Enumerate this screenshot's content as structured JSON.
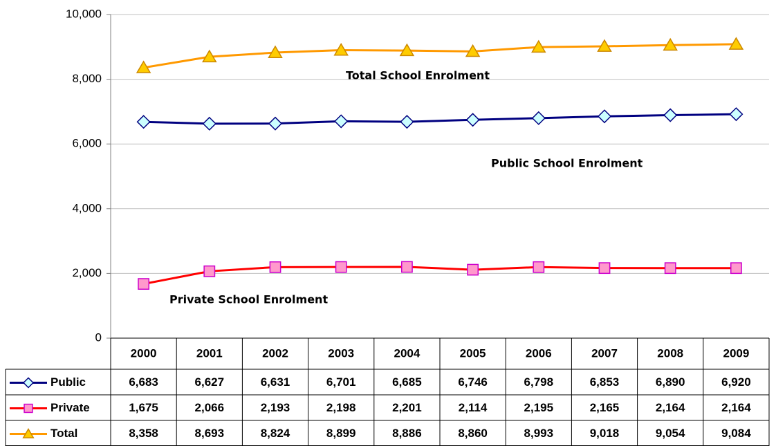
{
  "chart_data": {
    "type": "line",
    "categories": [
      "2000",
      "2001",
      "2002",
      "2003",
      "2004",
      "2005",
      "2006",
      "2007",
      "2008",
      "2009"
    ],
    "series": [
      {
        "name": "Public",
        "color": "#000080",
        "marker": "diamond",
        "marker_fill": "#ccffff",
        "values": [
          6683,
          6627,
          6631,
          6701,
          6685,
          6746,
          6798,
          6853,
          6890,
          6920
        ],
        "value_labels": [
          "6,683",
          "6,627",
          "6,631",
          "6,701",
          "6,685",
          "6,746",
          "6,798",
          "6,853",
          "6,890",
          "6,920"
        ]
      },
      {
        "name": "Private",
        "color": "#ff0000",
        "marker": "square",
        "marker_fill": "#ff99cc",
        "values": [
          1675,
          2066,
          2193,
          2198,
          2201,
          2114,
          2195,
          2165,
          2164,
          2164
        ],
        "value_labels": [
          "1,675",
          "2,066",
          "2,193",
          "2,198",
          "2,201",
          "2,114",
          "2,195",
          "2,165",
          "2,164",
          "2,164"
        ]
      },
      {
        "name": "Total",
        "color": "#ff9900",
        "marker": "triangle",
        "marker_fill": "#ffcc00",
        "values": [
          8358,
          8693,
          8824,
          8899,
          8886,
          8860,
          8993,
          9018,
          9054,
          9084
        ],
        "value_labels": [
          "8,358",
          "8,693",
          "8,824",
          "8,899",
          "8,886",
          "8,860",
          "8,993",
          "9,018",
          "9,054",
          "9,084"
        ]
      }
    ],
    "annotations": [
      "Total School Enrolment",
      "Public School Enrolment",
      "Private School Enrolment"
    ],
    "ylim": [
      0,
      10000
    ],
    "yticks": [
      0,
      {
        "value": 2000,
        "label": "2,000"
      },
      {
        "value": 4000,
        "label": "4,000"
      },
      {
        "value": 6000,
        "label": "6,000"
      },
      {
        "value": 8000,
        "label": "8,000"
      },
      {
        "value": 10000,
        "label": "10,000"
      }
    ],
    "grid": true,
    "data_table": true
  }
}
